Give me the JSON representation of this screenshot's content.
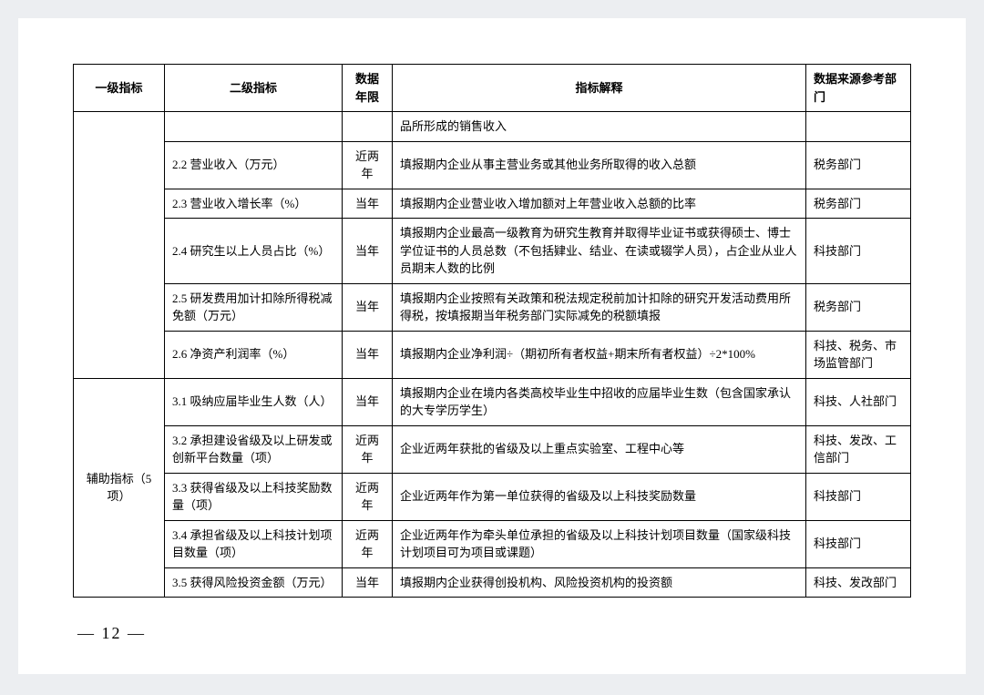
{
  "headers": {
    "col1": "一级指标",
    "col2": "二级指标",
    "col3": "数据年限",
    "col4": "指标解释",
    "col5": "数据来源参考部门"
  },
  "rows": [
    {
      "c2": "",
      "c3": "",
      "c4": "品所形成的销售收入",
      "c5": ""
    },
    {
      "c2": "2.2 营业收入（万元）",
      "c3": "近两年",
      "c4": "填报期内企业从事主营业务或其他业务所取得的收入总额",
      "c5": "税务部门"
    },
    {
      "c2": "2.3 营业收入增长率（%）",
      "c3": "当年",
      "c4": "填报期内企业营业收入增加额对上年营业收入总额的比率",
      "c5": "税务部门"
    },
    {
      "c2": "2.4 研究生以上人员占比（%）",
      "c3": "当年",
      "c4": "填报期内企业最高一级教育为研究生教育并取得毕业证书或获得硕士、博士学位证书的人员总数（不包括肄业、结业、在读或辍学人员），占企业从业人员期末人数的比例",
      "c5": "科技部门"
    },
    {
      "c2": "2.5 研发费用加计扣除所得税减免额（万元）",
      "c3": "当年",
      "c4": "填报期内企业按照有关政策和税法规定税前加计扣除的研究开发活动费用所得税，按填报期当年税务部门实际减免的税额填报",
      "c5": "税务部门"
    },
    {
      "c2": "2.6 净资产利润率（%）",
      "c3": "当年",
      "c4": "填报期内企业净利润÷（期初所有者权益+期末所有者权益）÷2*100%",
      "c5": "科技、税务、市场监管部门"
    }
  ],
  "aux_label": "辅助指标（5 项）",
  "aux_rows": [
    {
      "c2": "3.1 吸纳应届毕业生人数（人）",
      "c3": "当年",
      "c4": "填报期内企业在境内各类高校毕业生中招收的应届毕业生数（包含国家承认的大专学历学生）",
      "c5": "科技、人社部门"
    },
    {
      "c2": "3.2 承担建设省级及以上研发或创新平台数量（项）",
      "c3": "近两年",
      "c4": "企业近两年获批的省级及以上重点实验室、工程中心等",
      "c5": "科技、发改、工信部门"
    },
    {
      "c2": "3.3 获得省级及以上科技奖励数量（项）",
      "c3": "近两年",
      "c4": "企业近两年作为第一单位获得的省级及以上科技奖励数量",
      "c5": "科技部门"
    },
    {
      "c2": "3.4 承担省级及以上科技计划项目数量（项）",
      "c3": "近两年",
      "c4": "企业近两年作为牵头单位承担的省级及以上科技计划项目数量（国家级科技计划项目可为项目或课题）",
      "c5": "科技部门"
    },
    {
      "c2": "3.5 获得风险投资金额（万元）",
      "c3": "当年",
      "c4": "填报期内企业获得创投机构、风险投资机构的投资额",
      "c5": "科技、发改部门"
    }
  ],
  "page_number": "— 12 —"
}
